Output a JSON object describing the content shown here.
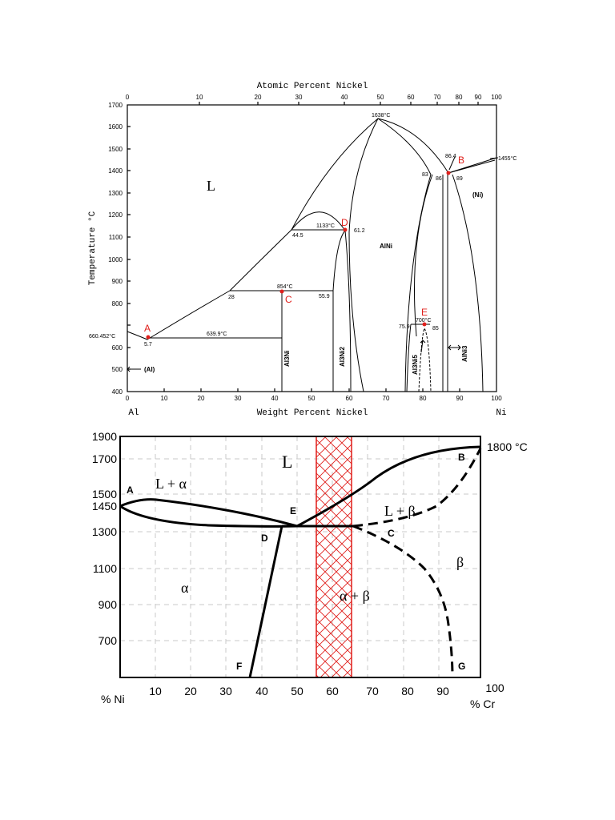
{
  "diagram1": {
    "top_axis_title": "Atomic Percent Nickel",
    "top_ticks": [
      "0",
      "10",
      "20",
      "30",
      "40",
      "50",
      "60",
      "70",
      "80",
      "90",
      "100"
    ],
    "y_title": "Temperature °C",
    "y_ticks": [
      "1700",
      "1600",
      "1500",
      "1400",
      "1300",
      "1200",
      "1100",
      "1000",
      "900",
      "800",
      "700",
      "600",
      "500",
      "400"
    ],
    "x_title": "Weight Percent Nickel",
    "x_ticks": [
      "0",
      "10",
      "20",
      "30",
      "40",
      "50",
      "60",
      "70",
      "80",
      "90",
      "100"
    ],
    "left_element": "Al",
    "right_element": "Ni",
    "phases": {
      "liquid": "L",
      "alni": "AlNi",
      "ni": "(Ni)",
      "al": "(Al)",
      "al3ni": "Al3Ni",
      "al3ni2": "Al3Ni2",
      "al3ni5": "Al3Ni5",
      "alni3": "AlNi3"
    },
    "annotations": {
      "t1638": "1638°C",
      "t1455": "1455°C",
      "t1133": "1133°C",
      "t854": "854°C",
      "t700": "700°C",
      "t639": "639.9°C",
      "t660": "660.452°C",
      "c864": "86.4",
      "c83": "83",
      "c86": "86",
      "c89": "89",
      "c445": "44.5",
      "c612": "61.2",
      "c28": "28",
      "c559": "55.9",
      "c759": "75.9",
      "c85": "85",
      "c57": "5.7"
    },
    "points": {
      "a": "A",
      "b": "B",
      "c": "C",
      "d": "D",
      "e": "E"
    }
  },
  "diagram2": {
    "y_ticks": [
      "1900",
      "1700",
      "1500",
      "1450",
      "1300",
      "1100",
      "900",
      "700"
    ],
    "x_ticks": [
      "10",
      "20",
      "30",
      "40",
      "50",
      "60",
      "70",
      "80",
      "90"
    ],
    "x_start": "% Ni",
    "x_end_num": "100",
    "x_end": "% Cr",
    "top_right_temp": "1800 °C",
    "phases": {
      "liquid": "L",
      "l_alpha": "L + α",
      "l_beta": "L + β",
      "alpha": "α",
      "beta": "β",
      "alpha_beta": "α + β"
    },
    "points": {
      "a": "A",
      "b": "B",
      "c": "C",
      "d": "D",
      "e": "E",
      "f": "F",
      "g": "G"
    }
  },
  "colors": {
    "ink": "#000000",
    "highlight": "#e0201c",
    "grid": "#c8c8c8"
  }
}
